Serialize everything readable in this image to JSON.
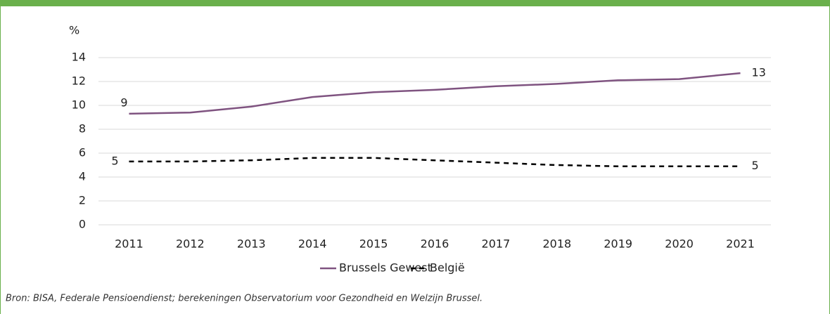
{
  "chart_data": {
    "type": "line",
    "y_label": "%",
    "categories": [
      "2011",
      "2012",
      "2013",
      "2014",
      "2015",
      "2016",
      "2017",
      "2018",
      "2019",
      "2020",
      "2021"
    ],
    "series": [
      {
        "name": "Brussels Gewest",
        "color": "#7f5380",
        "dash": false,
        "values": [
          9.3,
          9.4,
          9.9,
          10.7,
          11.1,
          11.3,
          11.6,
          11.8,
          12.1,
          12.2,
          12.7
        ],
        "value_labels": [
          "9",
          null,
          null,
          null,
          null,
          null,
          null,
          null,
          null,
          null,
          "13"
        ]
      },
      {
        "name": "België",
        "color": "#000000",
        "dash": true,
        "values": [
          5.3,
          5.3,
          5.4,
          5.6,
          5.6,
          5.4,
          5.2,
          5.0,
          4.9,
          4.9,
          4.9
        ],
        "value_labels": [
          "5",
          null,
          null,
          null,
          null,
          null,
          null,
          null,
          null,
          null,
          "5"
        ]
      }
    ],
    "ylim": [
      0,
      14
    ],
    "yticks": [
      0,
      2,
      4,
      6,
      8,
      10,
      12,
      14
    ],
    "grid": true,
    "legend": "bottom",
    "source": "Bron: BISA, Federale Pensioendienst; berekeningen Observatorium voor Gezondheid en Welzijn Brussel."
  }
}
